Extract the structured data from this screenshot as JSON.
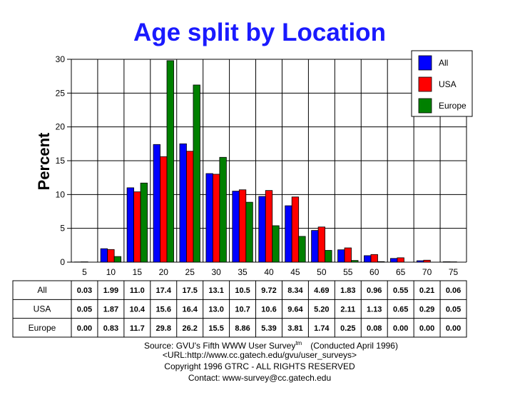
{
  "chart_data": {
    "type": "bar",
    "title": "Age split by Location",
    "ylabel": "Percent",
    "xlabel": "",
    "ylim": [
      0,
      30
    ],
    "yticks": [
      "0",
      "5",
      "10",
      "15",
      "20",
      "25",
      "30"
    ],
    "grid": true,
    "legend_position": "top-right",
    "categories": [
      "5",
      "10",
      "15",
      "20",
      "25",
      "30",
      "35",
      "40",
      "45",
      "50",
      "55",
      "60",
      "65",
      "70",
      "75"
    ],
    "series": [
      {
        "name": "All",
        "color": "#0000ff",
        "values": [
          0.03,
          1.99,
          11.0,
          17.4,
          17.5,
          13.1,
          10.5,
          9.72,
          8.34,
          4.69,
          1.83,
          0.96,
          0.55,
          0.21,
          0.06
        ],
        "labels": [
          "0.03",
          "1.99",
          "11.0",
          "17.4",
          "17.5",
          "13.1",
          "10.5",
          "9.72",
          "8.34",
          "4.69",
          "1.83",
          "0.96",
          "0.55",
          "0.21",
          "0.06"
        ]
      },
      {
        "name": "USA",
        "color": "#ff0000",
        "values": [
          0.05,
          1.87,
          10.4,
          15.6,
          16.4,
          13.0,
          10.7,
          10.6,
          9.64,
          5.2,
          2.11,
          1.13,
          0.65,
          0.29,
          0.05
        ],
        "labels": [
          "0.05",
          "1.87",
          "10.4",
          "15.6",
          "16.4",
          "13.0",
          "10.7",
          "10.6",
          "9.64",
          "5.20",
          "2.11",
          "1.13",
          "0.65",
          "0.29",
          "0.05"
        ]
      },
      {
        "name": "Europe",
        "color": "#008000",
        "values": [
          0.0,
          0.83,
          11.7,
          29.8,
          26.2,
          15.5,
          8.86,
          5.39,
          3.81,
          1.74,
          0.25,
          0.08,
          0.0,
          0.0,
          0.0
        ],
        "labels": [
          "0.00",
          "0.83",
          "11.7",
          "29.8",
          "26.2",
          "15.5",
          "8.86",
          "5.39",
          "3.81",
          "1.74",
          "0.25",
          "0.08",
          "0.00",
          "0.00",
          "0.00"
        ]
      }
    ]
  },
  "footer": {
    "source": "Source: GVU's Fifth WWW User Survey",
    "source_sup": "tm",
    "conducted": "(Conducted April 1996)",
    "url": "<URL:http://www.cc.gatech.edu/gvu/user_surveys>",
    "copyright": "Copyright 1996 GTRC -  ALL RIGHTS RESERVED",
    "contact": "Contact: www-survey@cc.gatech.edu"
  }
}
